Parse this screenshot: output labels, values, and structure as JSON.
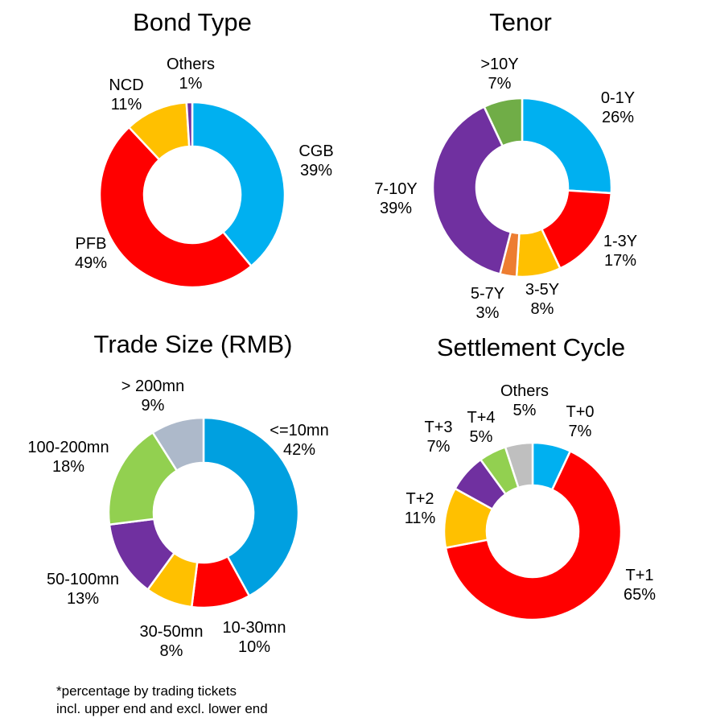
{
  "chart_data": [
    {
      "type": "pie",
      "title": "Bond Type",
      "categories": [
        "CGB",
        "PFB",
        "NCD",
        "Others"
      ],
      "values": [
        39,
        49,
        11,
        1
      ],
      "colors": [
        "#00B0F0",
        "#FF0000",
        "#FFC000",
        "#7030A0"
      ],
      "unit": "%"
    },
    {
      "type": "pie",
      "title": "Tenor",
      "categories": [
        "0-1Y",
        "1-3Y",
        "3-5Y",
        "5-7Y",
        "7-10Y",
        ">10Y"
      ],
      "values": [
        26,
        17,
        8,
        3,
        39,
        7
      ],
      "colors": [
        "#00B0F0",
        "#FF0000",
        "#FFC000",
        "#ED7D31",
        "#7030A0",
        "#70AD47"
      ],
      "unit": "%"
    },
    {
      "type": "pie",
      "title": "Trade Size (RMB)",
      "categories": [
        "<=10mn",
        "10-30mn",
        "30-50mn",
        "50-100mn",
        "100-200mn",
        "> 200mn"
      ],
      "values": [
        42,
        10,
        8,
        13,
        18,
        9
      ],
      "colors": [
        "#00A0E0",
        "#FF0000",
        "#FFC000",
        "#7030A0",
        "#92D050",
        "#ADB9CA"
      ],
      "unit": "%"
    },
    {
      "type": "pie",
      "title": "Settlement Cycle",
      "categories": [
        "T+0",
        "T+1",
        "T+2",
        "T+3",
        "T+4",
        "Others"
      ],
      "values": [
        7,
        65,
        11,
        7,
        5,
        5
      ],
      "colors": [
        "#00B0F0",
        "#FF0000",
        "#FFC000",
        "#7030A0",
        "#92D050",
        "#BFBFBF"
      ],
      "unit": "%"
    }
  ],
  "footnote": {
    "line1": "*percentage by trading tickets",
    "line2": "incl. upper end and excl. lower end"
  }
}
